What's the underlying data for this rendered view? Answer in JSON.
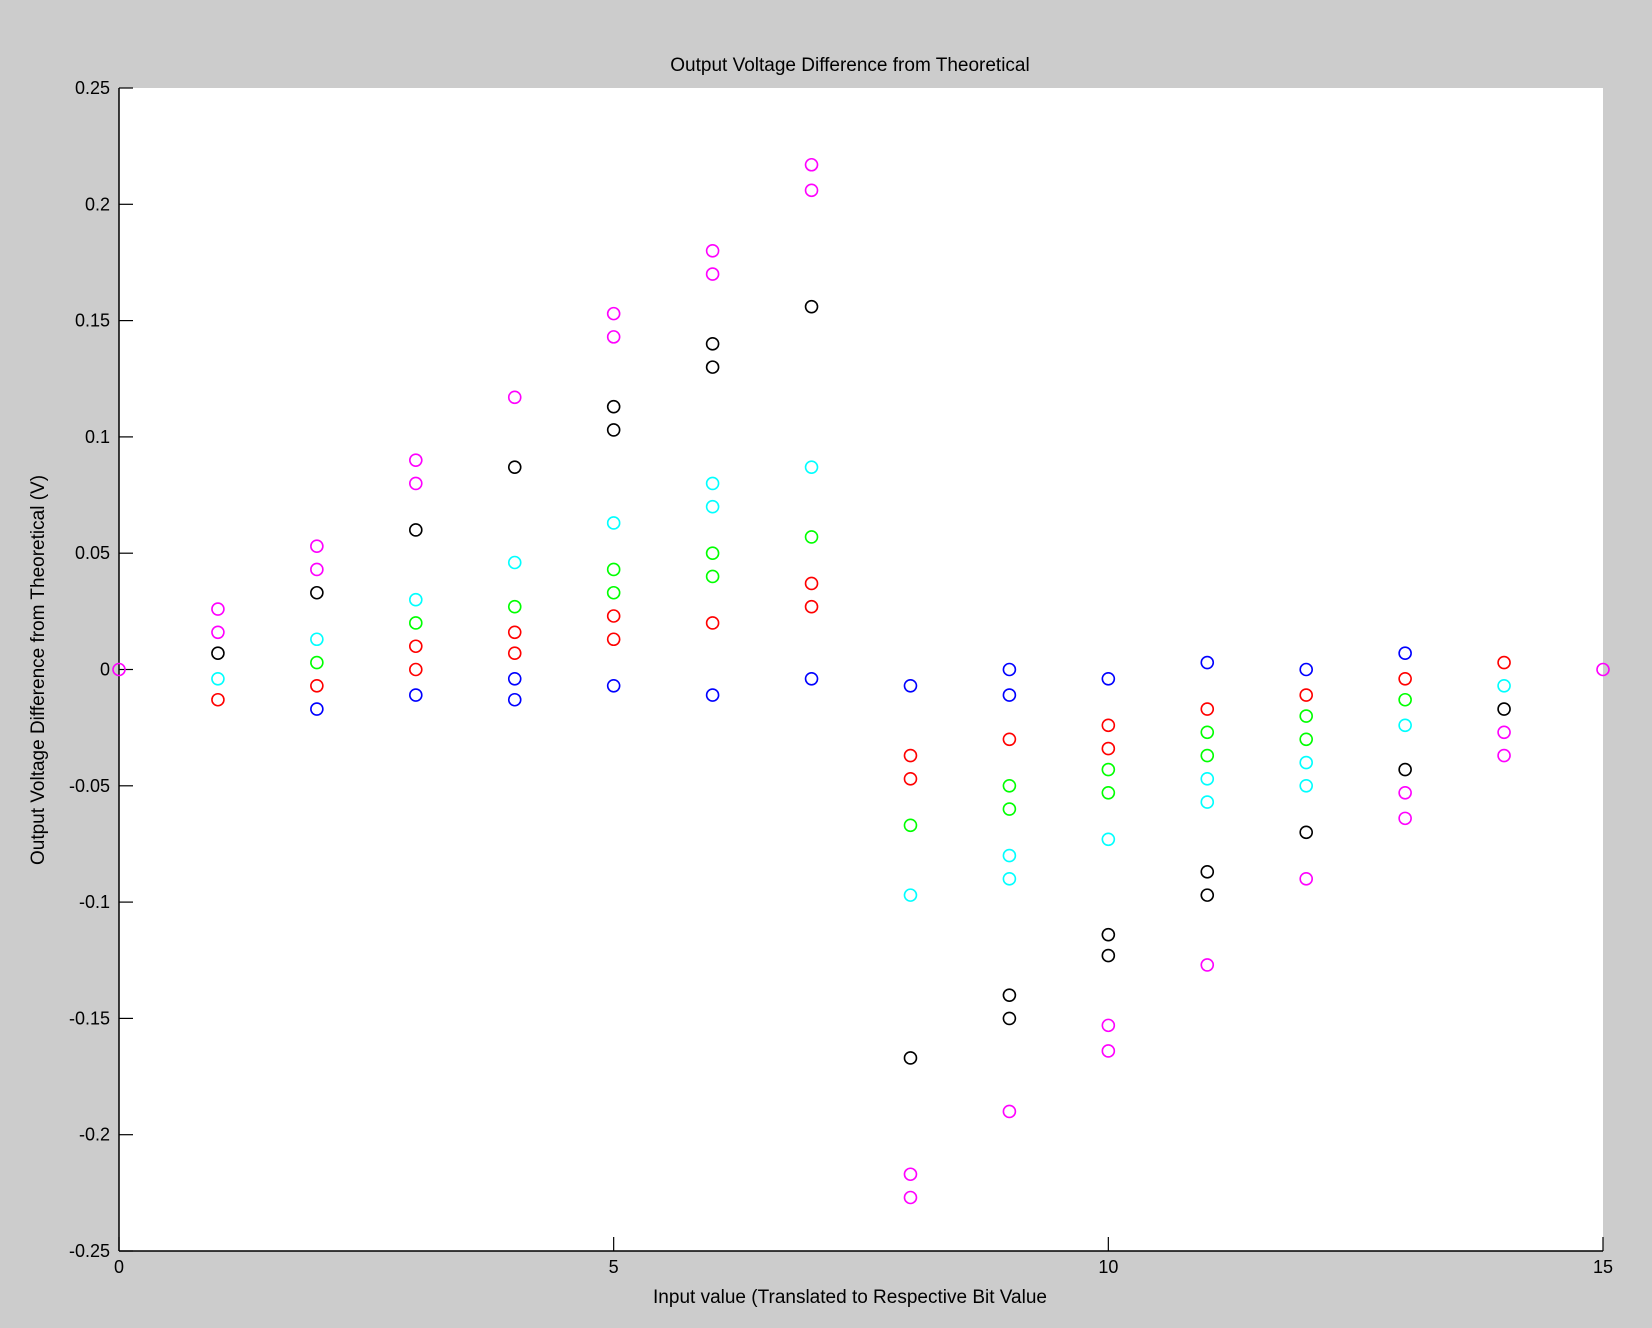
{
  "chart_data": {
    "type": "scatter",
    "title": "Output Voltage Difference from Theoretical",
    "xlabel": "Input value (Translated to Respective Bit Value",
    "ylabel": "Output Voltage Difference from Theoretical (V)",
    "xlim": [
      0,
      15
    ],
    "ylim": [
      -0.25,
      0.25
    ],
    "grid": false,
    "x_ticks": [
      0,
      5,
      10,
      15
    ],
    "x_tick_labels": [
      "0",
      "5",
      "10",
      "15"
    ],
    "y_ticks": [
      0.25,
      0.2,
      0.15,
      0.1,
      0.05,
      0,
      -0.05,
      -0.1,
      -0.15,
      -0.2,
      -0.25
    ],
    "y_tick_labels": [
      "0.25",
      "0.2",
      "0.15",
      "0.1",
      "0.05",
      "0",
      "-0.05",
      "-0.1",
      "-0.15",
      "-0.2",
      "-0.25"
    ],
    "marker": "circle-open",
    "series": [
      {
        "color": "#0000ff",
        "points": [
          [
            2,
            -0.017
          ],
          [
            3,
            -0.011
          ],
          [
            4,
            -0.004
          ],
          [
            4,
            -0.013
          ],
          [
            5,
            -0.007
          ],
          [
            6,
            -0.011
          ],
          [
            7,
            -0.004
          ],
          [
            8,
            -0.007
          ],
          [
            9,
            0.0
          ],
          [
            9,
            -0.011
          ],
          [
            10,
            -0.004
          ],
          [
            11,
            0.003
          ],
          [
            12,
            0.0
          ],
          [
            13,
            0.007
          ]
        ]
      },
      {
        "color": "#ff0000",
        "points": [
          [
            1,
            -0.013
          ],
          [
            2,
            -0.007
          ],
          [
            3,
            0.01
          ],
          [
            3,
            0.0
          ],
          [
            4,
            0.016
          ],
          [
            4,
            0.007
          ],
          [
            5,
            0.023
          ],
          [
            5,
            0.013
          ],
          [
            6,
            0.02
          ],
          [
            7,
            0.037
          ],
          [
            7,
            0.027
          ],
          [
            8,
            -0.037
          ],
          [
            8,
            -0.047
          ],
          [
            9,
            -0.03
          ],
          [
            10,
            -0.024
          ],
          [
            10,
            -0.034
          ],
          [
            11,
            -0.017
          ],
          [
            12,
            -0.011
          ],
          [
            13,
            -0.004
          ],
          [
            14,
            0.003
          ]
        ]
      },
      {
        "color": "#00ff00",
        "points": [
          [
            2,
            0.003
          ],
          [
            3,
            0.02
          ],
          [
            4,
            0.027
          ],
          [
            5,
            0.043
          ],
          [
            5,
            0.033
          ],
          [
            6,
            0.05
          ],
          [
            6,
            0.04
          ],
          [
            7,
            0.057
          ],
          [
            8,
            -0.067
          ],
          [
            9,
            -0.05
          ],
          [
            9,
            -0.06
          ],
          [
            10,
            -0.043
          ],
          [
            10,
            -0.053
          ],
          [
            11,
            -0.027
          ],
          [
            11,
            -0.037
          ],
          [
            12,
            -0.02
          ],
          [
            12,
            -0.03
          ],
          [
            13,
            -0.013
          ]
        ]
      },
      {
        "color": "#00ffff",
        "points": [
          [
            1,
            -0.004
          ],
          [
            2,
            0.013
          ],
          [
            3,
            0.03
          ],
          [
            4,
            0.046
          ],
          [
            5,
            0.063
          ],
          [
            6,
            0.08
          ],
          [
            6,
            0.07
          ],
          [
            7,
            0.087
          ],
          [
            8,
            -0.097
          ],
          [
            9,
            -0.08
          ],
          [
            9,
            -0.09
          ],
          [
            10,
            -0.073
          ],
          [
            11,
            -0.047
          ],
          [
            11,
            -0.057
          ],
          [
            12,
            -0.04
          ],
          [
            12,
            -0.05
          ],
          [
            13,
            -0.024
          ],
          [
            14,
            -0.007
          ]
        ]
      },
      {
        "color": "#000000",
        "points": [
          [
            1,
            0.007
          ],
          [
            2,
            0.033
          ],
          [
            3,
            0.06
          ],
          [
            4,
            0.087
          ],
          [
            5,
            0.113
          ],
          [
            5,
            0.103
          ],
          [
            6,
            0.14
          ],
          [
            6,
            0.13
          ],
          [
            7,
            0.156
          ],
          [
            8,
            -0.167
          ],
          [
            9,
            -0.14
          ],
          [
            9,
            -0.15
          ],
          [
            10,
            -0.114
          ],
          [
            10,
            -0.123
          ],
          [
            11,
            -0.087
          ],
          [
            11,
            -0.097
          ],
          [
            12,
            -0.07
          ],
          [
            13,
            -0.043
          ],
          [
            14,
            -0.017
          ]
        ]
      },
      {
        "color": "#ff00ff",
        "points": [
          [
            0,
            0.0
          ],
          [
            1,
            0.026
          ],
          [
            1,
            0.016
          ],
          [
            2,
            0.053
          ],
          [
            2,
            0.043
          ],
          [
            3,
            0.09
          ],
          [
            3,
            0.08
          ],
          [
            4,
            0.117
          ],
          [
            5,
            0.153
          ],
          [
            5,
            0.143
          ],
          [
            6,
            0.18
          ],
          [
            6,
            0.17
          ],
          [
            7,
            0.217
          ],
          [
            7,
            0.206
          ],
          [
            8,
            -0.217
          ],
          [
            8,
            -0.227
          ],
          [
            9,
            -0.19
          ],
          [
            10,
            -0.153
          ],
          [
            10,
            -0.164
          ],
          [
            11,
            -0.127
          ],
          [
            12,
            -0.09
          ],
          [
            13,
            -0.053
          ],
          [
            13,
            -0.064
          ],
          [
            14,
            -0.027
          ],
          [
            14,
            -0.037
          ],
          [
            15,
            0.0
          ]
        ]
      }
    ]
  }
}
